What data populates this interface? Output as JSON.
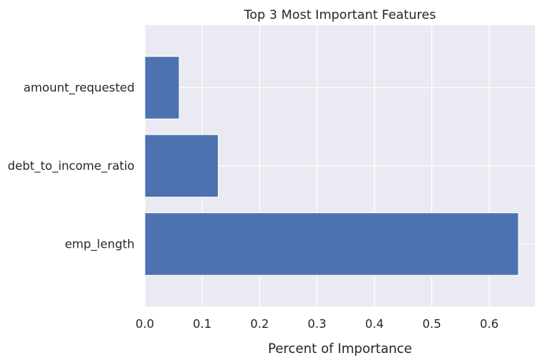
{
  "chart_data": {
    "type": "bar",
    "orientation": "horizontal",
    "title": "Top 3 Most Important Features",
    "xlabel": "Percent of Importance",
    "ylabel": "",
    "categories": [
      "emp_length",
      "debt_to_income_ratio",
      "amount_requested"
    ],
    "values": [
      0.651,
      0.128,
      0.06
    ],
    "xlim": [
      0,
      0.68
    ],
    "xticks": [
      0,
      0.1,
      0.2,
      0.3,
      0.4,
      0.5,
      0.6
    ],
    "xtick_labels": [
      "0.0",
      "0.1",
      "0.2",
      "0.3",
      "0.4",
      "0.5",
      "0.6"
    ],
    "grid": true,
    "colors": {
      "bar": "#4c72b0",
      "plot_background": "#eaeaf2",
      "grid": "#ffffff"
    }
  }
}
